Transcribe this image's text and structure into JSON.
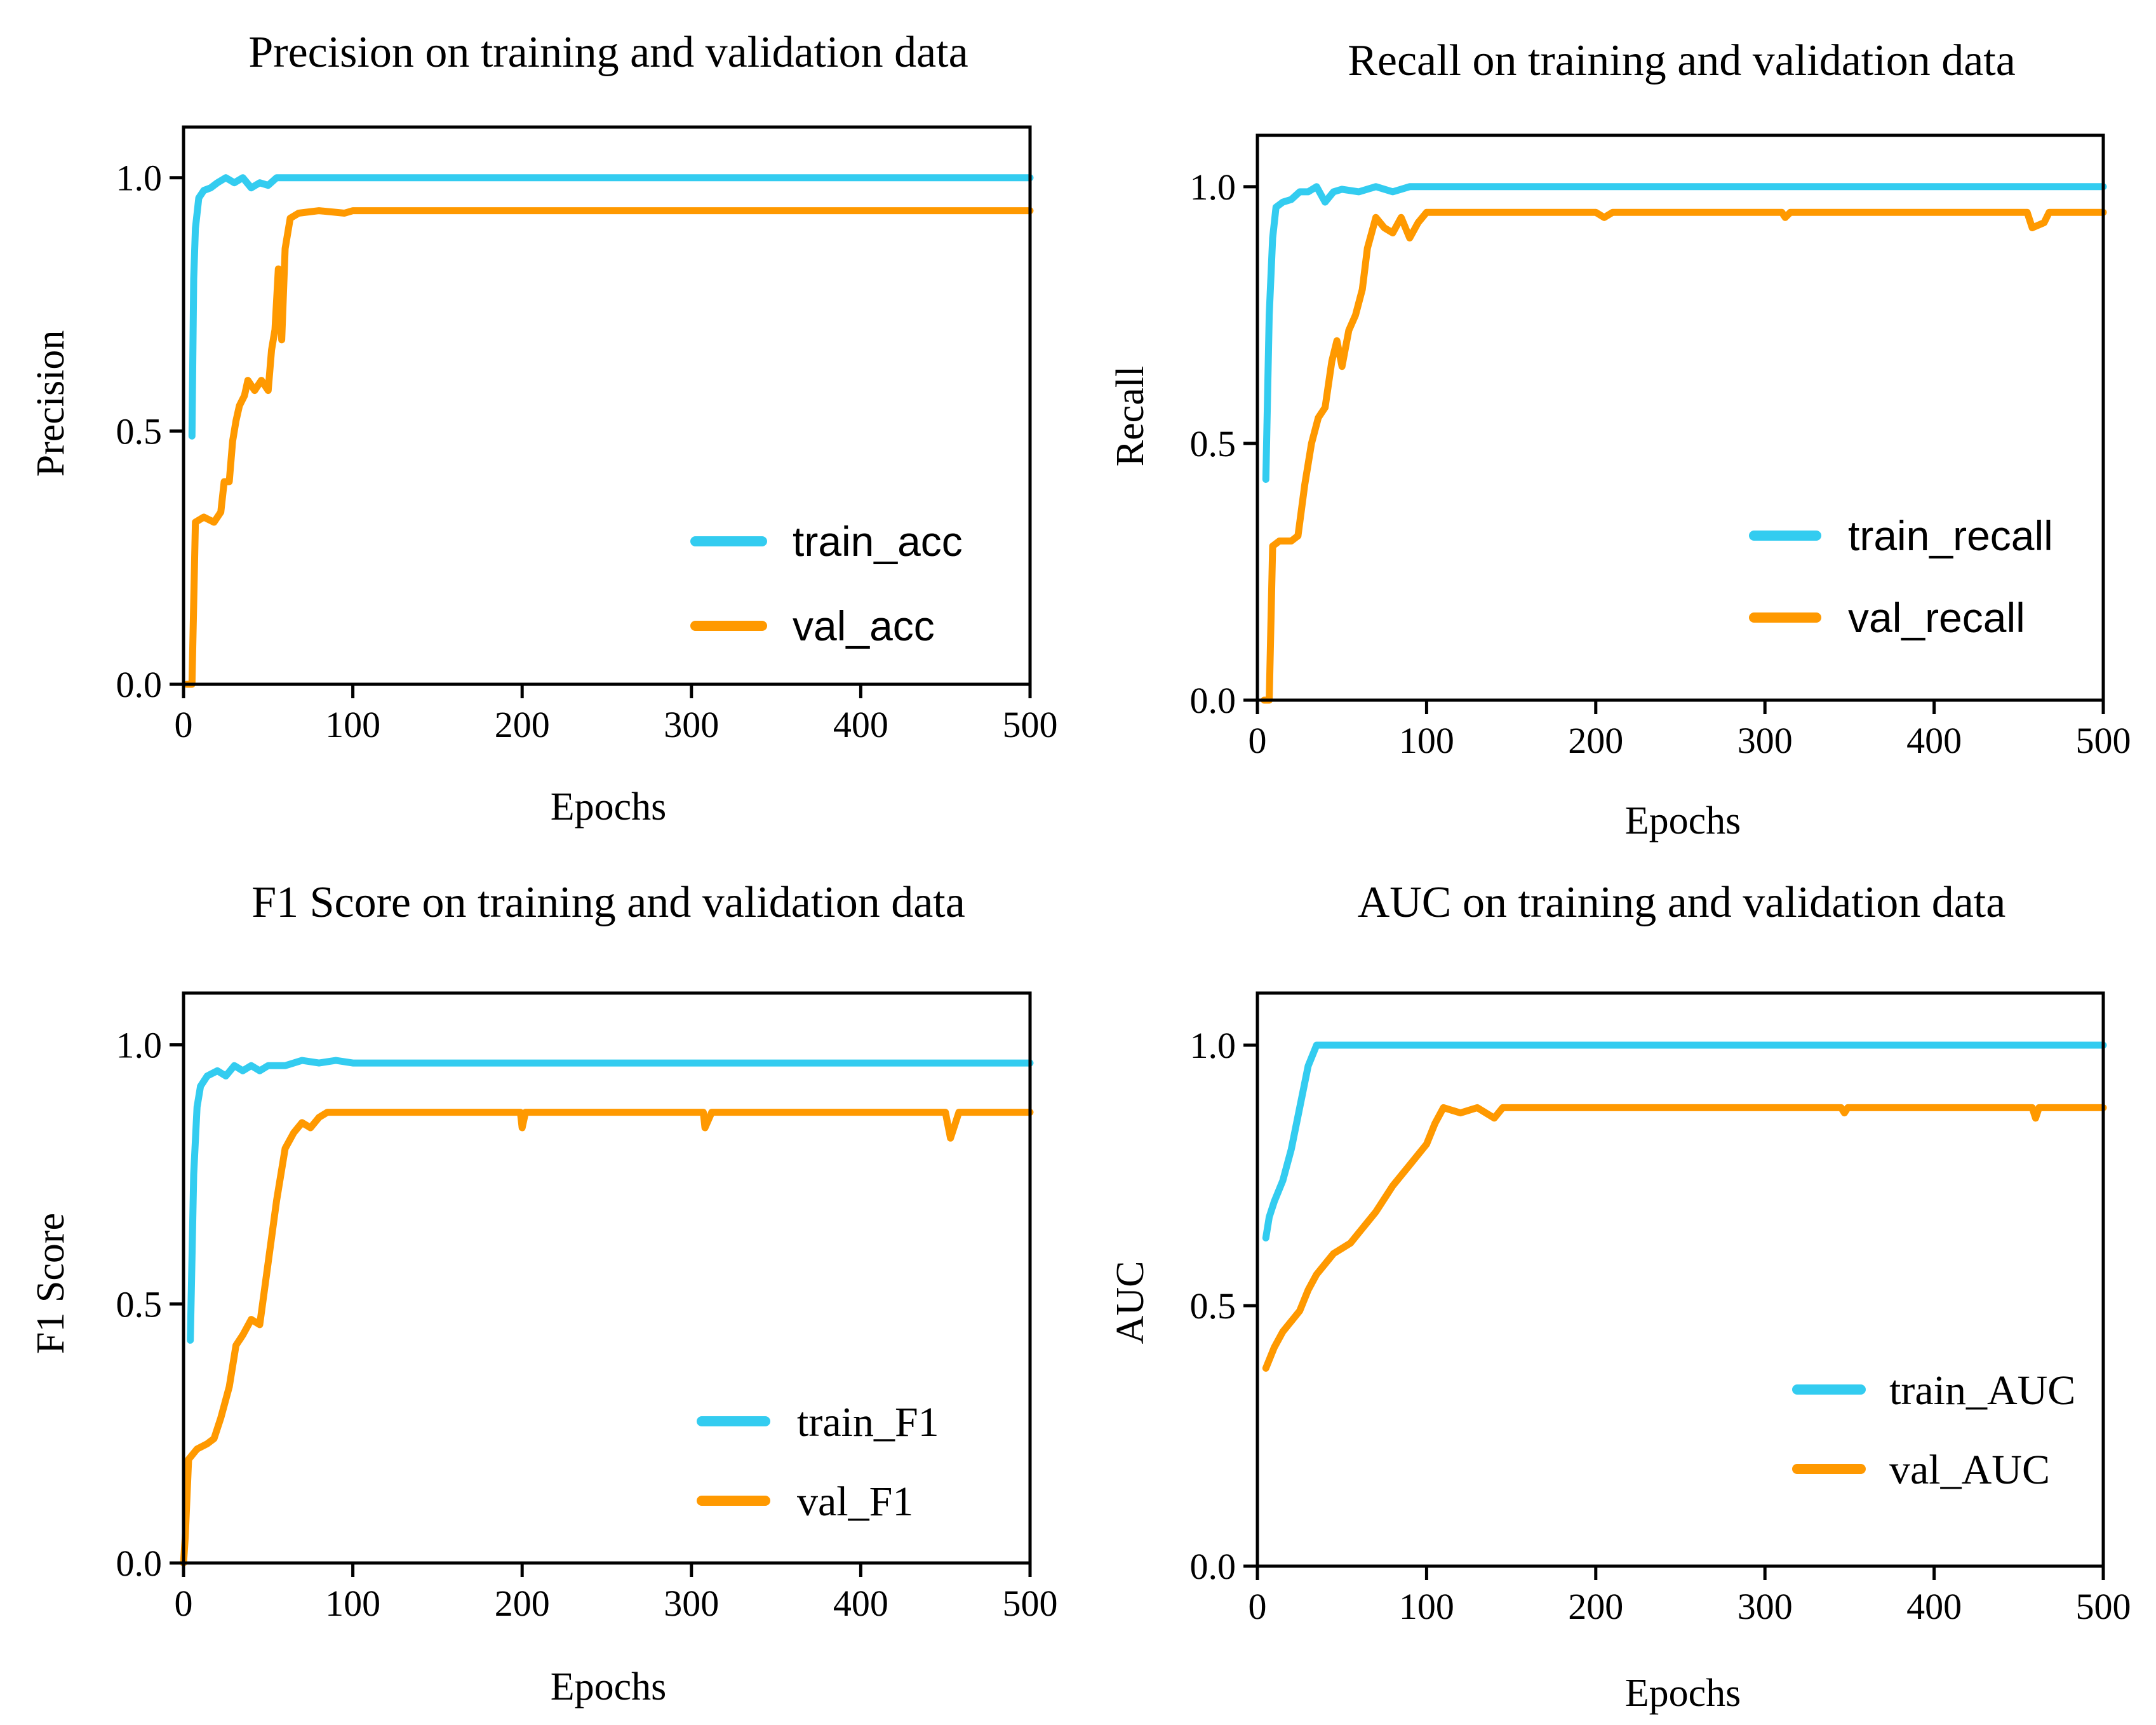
{
  "chart_data": [
    {
      "type": "line",
      "title": "Precision on training and validation data",
      "xlabel": "Epochs",
      "ylabel": "Precision",
      "xlim": [
        0,
        500
      ],
      "ylim": [
        0,
        1.1
      ],
      "xticks": [
        "0",
        "100",
        "200",
        "300",
        "400",
        "500"
      ],
      "yticks": [
        "0.0",
        "0.5",
        "1.0"
      ],
      "legend_position": "bottom-right",
      "series": [
        {
          "name": "train_acc",
          "color": "#33CCF0",
          "points": [
            [
              5,
              0.49
            ],
            [
              6,
              0.8
            ],
            [
              7,
              0.9
            ],
            [
              9,
              0.96
            ],
            [
              12,
              0.975
            ],
            [
              16,
              0.98
            ],
            [
              20,
              0.99
            ],
            [
              25,
              1.0
            ],
            [
              30,
              0.99
            ],
            [
              35,
              1.0
            ],
            [
              40,
              0.98
            ],
            [
              45,
              0.99
            ],
            [
              50,
              0.985
            ],
            [
              55,
              1.0
            ],
            [
              60,
              1.0
            ],
            [
              100,
              1.0
            ],
            [
              200,
              1.0
            ],
            [
              300,
              1.0
            ],
            [
              400,
              1.0
            ],
            [
              500,
              1.0
            ]
          ]
        },
        {
          "name": "val_acc",
          "color": "#FF9900",
          "points": [
            [
              2,
              0.0
            ],
            [
              5,
              0.0
            ],
            [
              7,
              0.32
            ],
            [
              12,
              0.33
            ],
            [
              18,
              0.32
            ],
            [
              22,
              0.34
            ],
            [
              24,
              0.4
            ],
            [
              27,
              0.4
            ],
            [
              29,
              0.48
            ],
            [
              31,
              0.52
            ],
            [
              33,
              0.55
            ],
            [
              36,
              0.57
            ],
            [
              38,
              0.6
            ],
            [
              42,
              0.58
            ],
            [
              46,
              0.6
            ],
            [
              50,
              0.58
            ],
            [
              52,
              0.66
            ],
            [
              54,
              0.7
            ],
            [
              56,
              0.82
            ],
            [
              58,
              0.68
            ],
            [
              60,
              0.86
            ],
            [
              63,
              0.92
            ],
            [
              68,
              0.93
            ],
            [
              80,
              0.935
            ],
            [
              95,
              0.93
            ],
            [
              100,
              0.935
            ],
            [
              200,
              0.935
            ],
            [
              300,
              0.935
            ],
            [
              400,
              0.935
            ],
            [
              500,
              0.935
            ]
          ]
        }
      ]
    },
    {
      "type": "line",
      "title": "Recall on training and validation data",
      "xlabel": "Epochs",
      "ylabel": "Recall",
      "xlim": [
        0,
        500
      ],
      "ylim": [
        0,
        1.1
      ],
      "xticks": [
        "0",
        "100",
        "200",
        "300",
        "400",
        "500"
      ],
      "yticks": [
        "0.0",
        "0.5",
        "1.0"
      ],
      "legend_position": "right",
      "series": [
        {
          "name": "train_recall",
          "color": "#33CCF0",
          "points": [
            [
              5,
              0.43
            ],
            [
              7,
              0.75
            ],
            [
              9,
              0.9
            ],
            [
              11,
              0.96
            ],
            [
              15,
              0.97
            ],
            [
              20,
              0.975
            ],
            [
              25,
              0.99
            ],
            [
              30,
              0.99
            ],
            [
              35,
              1.0
            ],
            [
              40,
              0.97
            ],
            [
              45,
              0.99
            ],
            [
              50,
              0.995
            ],
            [
              60,
              0.99
            ],
            [
              70,
              1.0
            ],
            [
              80,
              0.99
            ],
            [
              90,
              1.0
            ],
            [
              100,
              1.0
            ],
            [
              200,
              1.0
            ],
            [
              300,
              1.0
            ],
            [
              400,
              1.0
            ],
            [
              500,
              1.0
            ]
          ]
        },
        {
          "name": "val_recall",
          "color": "#FF9900",
          "points": [
            [
              4,
              0.0
            ],
            [
              7,
              0.0
            ],
            [
              9,
              0.3
            ],
            [
              13,
              0.31
            ],
            [
              20,
              0.31
            ],
            [
              24,
              0.32
            ],
            [
              28,
              0.42
            ],
            [
              32,
              0.5
            ],
            [
              36,
              0.55
            ],
            [
              40,
              0.57
            ],
            [
              44,
              0.66
            ],
            [
              47,
              0.7
            ],
            [
              50,
              0.65
            ],
            [
              54,
              0.72
            ],
            [
              58,
              0.75
            ],
            [
              62,
              0.8
            ],
            [
              65,
              0.88
            ],
            [
              70,
              0.94
            ],
            [
              75,
              0.92
            ],
            [
              80,
              0.91
            ],
            [
              85,
              0.94
            ],
            [
              90,
              0.9
            ],
            [
              95,
              0.93
            ],
            [
              100,
              0.95
            ],
            [
              200,
              0.95
            ],
            [
              205,
              0.94
            ],
            [
              210,
              0.95
            ],
            [
              310,
              0.95
            ],
            [
              312,
              0.94
            ],
            [
              315,
              0.95
            ],
            [
              455,
              0.95
            ],
            [
              458,
              0.92
            ],
            [
              465,
              0.93
            ],
            [
              468,
              0.95
            ],
            [
              500,
              0.95
            ]
          ]
        }
      ]
    },
    {
      "type": "line",
      "title": "F1 Score on training and validation data",
      "xlabel": "Epochs",
      "ylabel": "F1 Score",
      "xlim": [
        0,
        500
      ],
      "ylim": [
        0,
        1.1
      ],
      "xticks": [
        "0",
        "100",
        "200",
        "300",
        "400",
        "500"
      ],
      "yticks": [
        "0.0",
        "0.5",
        "1.0"
      ],
      "legend_position": "bottom-right",
      "series": [
        {
          "name": "train_F1",
          "color": "#33CCF0",
          "points": [
            [
              4,
              0.43
            ],
            [
              6,
              0.75
            ],
            [
              8,
              0.88
            ],
            [
              10,
              0.92
            ],
            [
              14,
              0.94
            ],
            [
              20,
              0.95
            ],
            [
              25,
              0.94
            ],
            [
              30,
              0.96
            ],
            [
              35,
              0.95
            ],
            [
              40,
              0.96
            ],
            [
              45,
              0.95
            ],
            [
              50,
              0.96
            ],
            [
              55,
              0.96
            ],
            [
              60,
              0.96
            ],
            [
              70,
              0.97
            ],
            [
              80,
              0.965
            ],
            [
              90,
              0.97
            ],
            [
              100,
              0.965
            ],
            [
              200,
              0.965
            ],
            [
              300,
              0.965
            ],
            [
              400,
              0.965
            ],
            [
              500,
              0.965
            ]
          ]
        },
        {
          "name": "val_F1",
          "color": "#FF9900",
          "points": [
            [
              0,
              0.0
            ],
            [
              1,
              0.05
            ],
            [
              3,
              0.2
            ],
            [
              8,
              0.22
            ],
            [
              14,
              0.23
            ],
            [
              18,
              0.24
            ],
            [
              22,
              0.28
            ],
            [
              27,
              0.34
            ],
            [
              31,
              0.42
            ],
            [
              35,
              0.44
            ],
            [
              40,
              0.47
            ],
            [
              45,
              0.46
            ],
            [
              50,
              0.58
            ],
            [
              55,
              0.7
            ],
            [
              60,
              0.8
            ],
            [
              65,
              0.83
            ],
            [
              70,
              0.85
            ],
            [
              75,
              0.84
            ],
            [
              80,
              0.86
            ],
            [
              85,
              0.87
            ],
            [
              100,
              0.87
            ],
            [
              199,
              0.87
            ],
            [
              200,
              0.84
            ],
            [
              202,
              0.87
            ],
            [
              307,
              0.87
            ],
            [
              308,
              0.84
            ],
            [
              312,
              0.87
            ],
            [
              450,
              0.87
            ],
            [
              453,
              0.82
            ],
            [
              458,
              0.87
            ],
            [
              500,
              0.87
            ]
          ]
        }
      ]
    },
    {
      "type": "line",
      "title": "AUC on training and validation data",
      "xlabel": "Epochs",
      "ylabel": "AUC",
      "xlim": [
        0,
        500
      ],
      "ylim": [
        0,
        1.1
      ],
      "xticks": [
        "0",
        "100",
        "200",
        "300",
        "400",
        "500"
      ],
      "yticks": [
        "0.0",
        "0.5",
        "1.0"
      ],
      "legend_position": "right",
      "series": [
        {
          "name": "train_AUC",
          "color": "#33CCF0",
          "points": [
            [
              5,
              0.63
            ],
            [
              7,
              0.67
            ],
            [
              10,
              0.7
            ],
            [
              15,
              0.74
            ],
            [
              20,
              0.8
            ],
            [
              25,
              0.88
            ],
            [
              30,
              0.96
            ],
            [
              35,
              1.0
            ],
            [
              40,
              1.0
            ],
            [
              100,
              1.0
            ],
            [
              200,
              1.0
            ],
            [
              300,
              1.0
            ],
            [
              400,
              1.0
            ],
            [
              500,
              1.0
            ]
          ]
        },
        {
          "name": "val_AUC",
          "color": "#FF9900",
          "points": [
            [
              5,
              0.38
            ],
            [
              10,
              0.42
            ],
            [
              15,
              0.45
            ],
            [
              20,
              0.47
            ],
            [
              25,
              0.49
            ],
            [
              30,
              0.53
            ],
            [
              35,
              0.56
            ],
            [
              40,
              0.58
            ],
            [
              45,
              0.6
            ],
            [
              50,
              0.61
            ],
            [
              55,
              0.62
            ],
            [
              60,
              0.64
            ],
            [
              70,
              0.68
            ],
            [
              80,
              0.73
            ],
            [
              90,
              0.77
            ],
            [
              100,
              0.81
            ],
            [
              105,
              0.85
            ],
            [
              110,
              0.88
            ],
            [
              120,
              0.87
            ],
            [
              130,
              0.88
            ],
            [
              140,
              0.86
            ],
            [
              145,
              0.88
            ],
            [
              200,
              0.88
            ],
            [
              345,
              0.88
            ],
            [
              347,
              0.87
            ],
            [
              349,
              0.88
            ],
            [
              458,
              0.88
            ],
            [
              460,
              0.86
            ],
            [
              462,
              0.88
            ],
            [
              500,
              0.88
            ]
          ]
        }
      ]
    }
  ]
}
